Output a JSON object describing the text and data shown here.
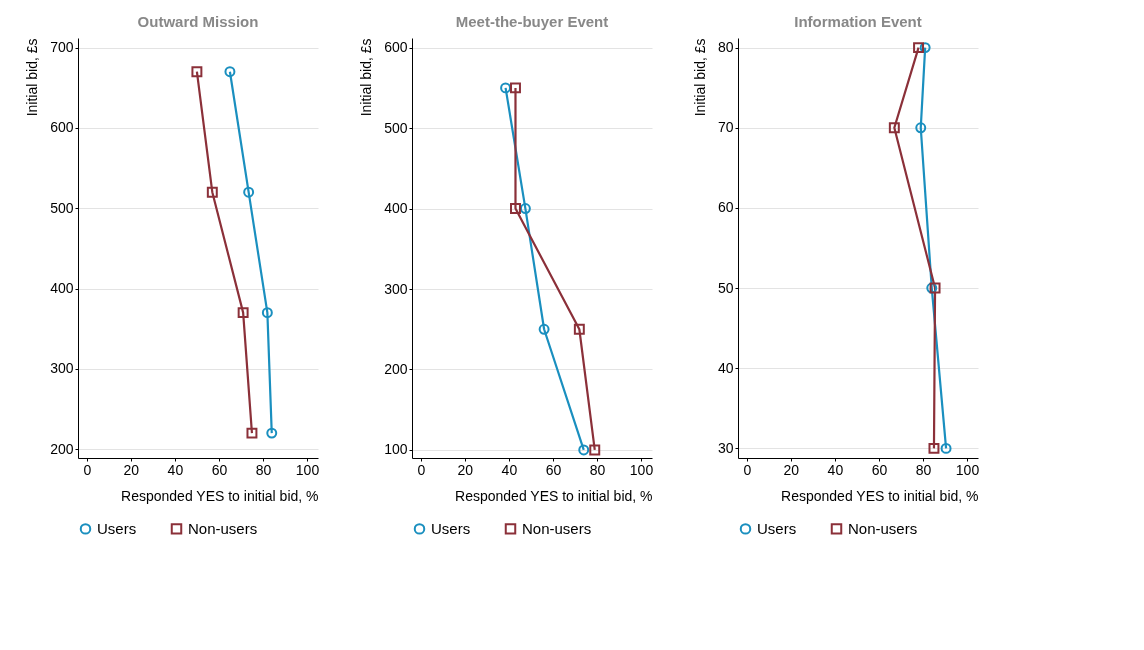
{
  "chart_data": [
    {
      "type": "line",
      "title": "Outward Mission",
      "xlabel": "Responded YES to initial bid, %",
      "ylabel": "Initial bid, £s",
      "xlim": [
        -4,
        105
      ],
      "xticks": [
        0,
        20,
        40,
        60,
        80,
        100
      ],
      "ylim": [
        189,
        712
      ],
      "yticks": [
        200,
        300,
        400,
        500,
        600,
        700
      ],
      "grid": "y",
      "legend": "bottom",
      "series": [
        {
          "name": "Users",
          "color": "#1a8fbf",
          "marker": "circle",
          "x": [
            65,
            73.5,
            82,
            84
          ],
          "values": [
            670,
            520,
            370,
            220
          ]
        },
        {
          "name": "Non-users",
          "color": "#8b3039",
          "marker": "square",
          "x": [
            50,
            57,
            71,
            75
          ],
          "values": [
            670,
            520,
            370,
            220
          ]
        }
      ]
    },
    {
      "type": "line",
      "title": "Meet-the-buyer Event",
      "xlabel": "Responded YES to initial bid, %",
      "ylabel": "Initial bid, £s",
      "xlim": [
        -4,
        105
      ],
      "xticks": [
        0,
        20,
        40,
        60,
        80,
        100
      ],
      "ylim": [
        90,
        612
      ],
      "yticks": [
        100,
        200,
        300,
        400,
        500,
        600
      ],
      "grid": "y",
      "legend": "bottom",
      "series": [
        {
          "name": "Users",
          "color": "#1a8fbf",
          "marker": "circle",
          "x": [
            38.5,
            47.5,
            56,
            74
          ],
          "values": [
            550,
            400,
            250,
            100
          ]
        },
        {
          "name": "Non-users",
          "color": "#8b3039",
          "marker": "square",
          "x": [
            43,
            43,
            72,
            79
          ],
          "values": [
            550,
            400,
            250,
            100
          ]
        }
      ]
    },
    {
      "type": "line",
      "title": "Information Event",
      "xlabel": "Responded YES to initial bid, %",
      "ylabel": "Initial bid, £s",
      "xlim": [
        -4,
        105
      ],
      "xticks": [
        0,
        20,
        40,
        60,
        80,
        100
      ],
      "ylim": [
        28.8,
        81.2
      ],
      "yticks": [
        30,
        40,
        50,
        60,
        70,
        80
      ],
      "grid": "y",
      "legend": "bottom",
      "series": [
        {
          "name": "Users",
          "color": "#1a8fbf",
          "marker": "circle",
          "x": [
            81,
            79,
            84,
            90.5
          ],
          "values": [
            80,
            70,
            50,
            30
          ]
        },
        {
          "name": "Non-users",
          "color": "#8b3039",
          "marker": "square",
          "x": [
            78,
            67,
            85.5,
            85
          ],
          "values": [
            80,
            70,
            50,
            30
          ]
        }
      ]
    }
  ]
}
